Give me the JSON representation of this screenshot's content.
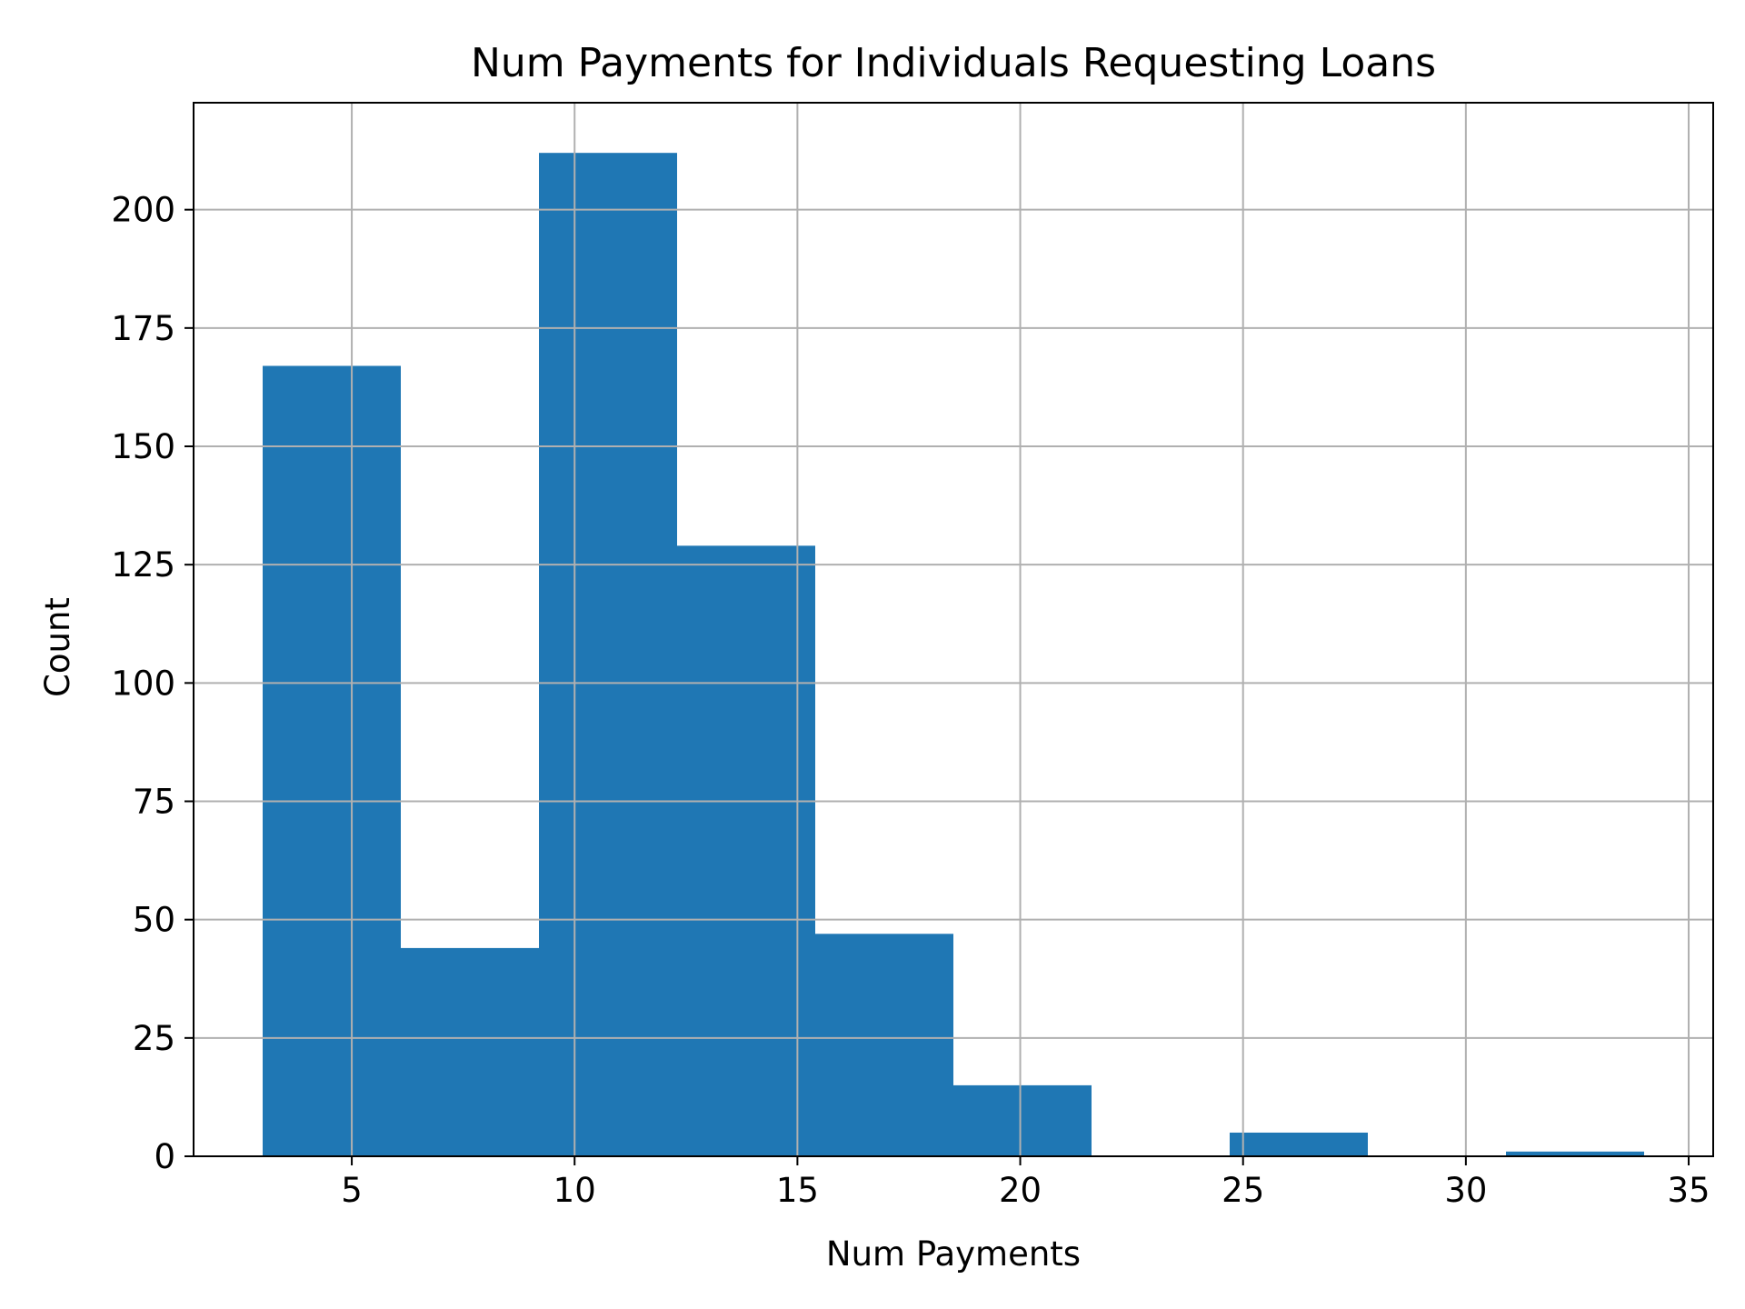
{
  "chart_data": {
    "type": "bar",
    "title": "Num Payments for Individuals Requesting Loans",
    "xlabel": "Num Payments",
    "ylabel": "Count",
    "xlim": [
      1.45,
      35.55
    ],
    "ylim": [
      0,
      222.6
    ],
    "xticks": [
      5,
      10,
      15,
      20,
      25,
      30,
      35
    ],
    "yticks": [
      0,
      25,
      50,
      75,
      100,
      125,
      150,
      175,
      200
    ],
    "grid": true,
    "bar_color": "#1f77b4",
    "bins": [
      {
        "start": 3.0,
        "end": 6.1,
        "count": 167
      },
      {
        "start": 6.1,
        "end": 9.2,
        "count": 44
      },
      {
        "start": 9.2,
        "end": 12.3,
        "count": 212
      },
      {
        "start": 12.3,
        "end": 15.4,
        "count": 129
      },
      {
        "start": 15.4,
        "end": 18.5,
        "count": 47
      },
      {
        "start": 18.5,
        "end": 21.6,
        "count": 15
      },
      {
        "start": 21.6,
        "end": 24.7,
        "count": 0
      },
      {
        "start": 24.7,
        "end": 27.8,
        "count": 5
      },
      {
        "start": 27.8,
        "end": 30.9,
        "count": 0
      },
      {
        "start": 30.9,
        "end": 34.0,
        "count": 1
      }
    ]
  }
}
